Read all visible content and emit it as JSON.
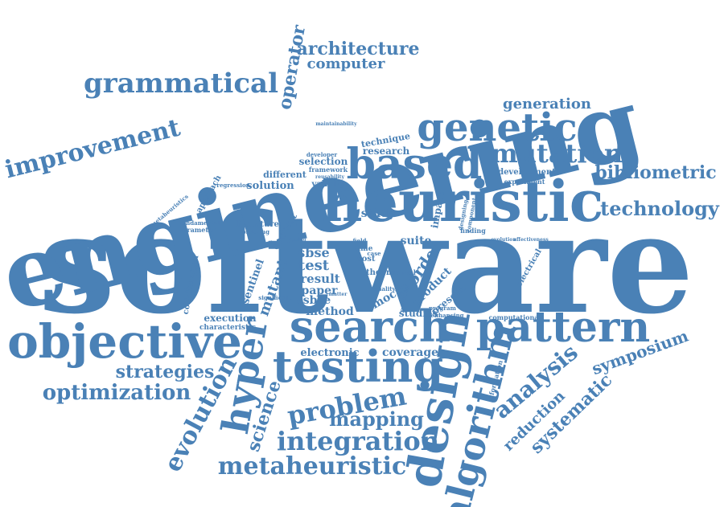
{
  "colors": {
    "word": "#4a81b6",
    "background": "#ffffff"
  },
  "words": [
    "software",
    "engineering",
    "heuristic",
    "based",
    "genetic",
    "search",
    "objective",
    "testing",
    "pattern",
    "design",
    "algorithm",
    "hyper",
    "grammatical",
    "improvement",
    "mutation",
    "bibliometric",
    "technology",
    "generation",
    "architecture",
    "computer",
    "operator",
    "evolution",
    "science",
    "problem",
    "mapping",
    "integration",
    "metaheuristic",
    "optimization",
    "strategies",
    "analysis",
    "systematic",
    "symposium",
    "reduction",
    "coverage",
    "electronic",
    "execution",
    "characteristic",
    "collaboration",
    "sentinel",
    "mutant",
    "sbse",
    "test",
    "result",
    "paper",
    "ssbse",
    "method",
    "mocas",
    "studies",
    "order",
    "product",
    "suite",
    "theory",
    "study",
    "impact",
    "research",
    "selection",
    "framework",
    "validity",
    "solution",
    "different",
    "approach",
    "context",
    "literature",
    "ordering",
    "fundamental",
    "parameter",
    "metaheuristics",
    "regression",
    "development",
    "experiment",
    "technique",
    "developer",
    "reusability",
    "maintainability",
    "information",
    "computational",
    "electrical",
    "effectiveness",
    "evolution",
    "program",
    "enhancing",
    "finding",
    "component",
    "designing",
    "significant",
    "quality",
    "matter",
    "cost",
    "manual",
    "patches",
    "present",
    "time",
    "case",
    "field",
    "author"
  ]
}
